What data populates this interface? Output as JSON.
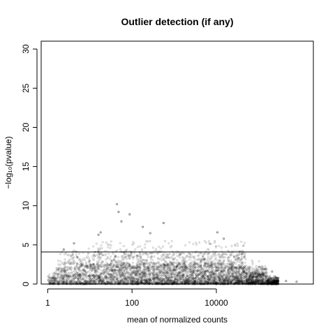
{
  "chart_data": {
    "type": "scatter",
    "title": "Outlier detection (if any)",
    "xlabel": "mean of normalized counts",
    "ylabel": "−log₁₀(pvalue)",
    "x_scale": "log10",
    "x_ticks": [
      1,
      100,
      10000
    ],
    "x_tick_labels": [
      "1",
      "100",
      "10000"
    ],
    "xlim": [
      0.7,
      2000000
    ],
    "y_ticks": [
      0,
      5,
      10,
      15,
      20,
      25,
      30
    ],
    "y_tick_labels": [
      "0",
      "5",
      "10",
      "15",
      "20",
      "25",
      "30"
    ],
    "ylim": [
      0,
      31
    ],
    "threshold_line_y": 4.1,
    "grid": false,
    "legend": "none",
    "point_style": "open-circle",
    "point_color": "#000000",
    "highlighted_points": [
      {
        "x": 44,
        "y": 10.2
      },
      {
        "x": 48,
        "y": 9.2
      },
      {
        "x": 88,
        "y": 8.9
      },
      {
        "x": 56,
        "y": 8.0
      },
      {
        "x": 560,
        "y": 7.8
      },
      {
        "x": 180,
        "y": 7.3
      },
      {
        "x": 10600,
        "y": 6.6
      },
      {
        "x": 18,
        "y": 6.6
      },
      {
        "x": 16,
        "y": 6.3
      },
      {
        "x": 270,
        "y": 6.5
      },
      {
        "x": 15000,
        "y": 5.8
      },
      {
        "x": 4.2,
        "y": 5.2
      },
      {
        "x": 2.4,
        "y": 4.4
      },
      {
        "x": 800000,
        "y": 0.3
      },
      {
        "x": 450000,
        "y": 0.4
      },
      {
        "x": 210000,
        "y": 1.6
      },
      {
        "x": 260000,
        "y": 0.8
      }
    ],
    "bulk_distribution": {
      "x_range": [
        1,
        300000
      ],
      "dense_y_range": [
        0,
        3
      ],
      "sparse_y_range": [
        3,
        5.5
      ],
      "point_count": 5000
    }
  }
}
